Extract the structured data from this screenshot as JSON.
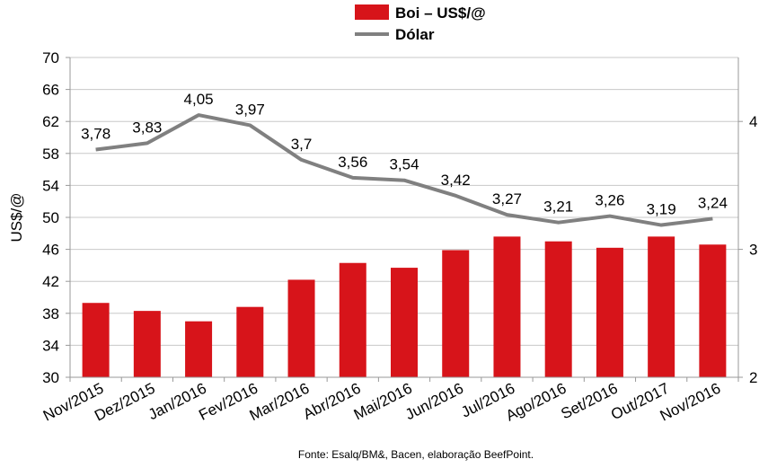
{
  "chart_data": {
    "type": "bar+line",
    "categories": [
      "Nov/2015",
      "Dez/2015",
      "Jan/2016",
      "Fev/2016",
      "Mar/2016",
      "Abr/2016",
      "Mai/2016",
      "Jun/2016",
      "Jul/2016",
      "Ago/2016",
      "Set/2016",
      "Out/2017",
      "Nov/2016"
    ],
    "series": [
      {
        "name": "Boi – US$/@",
        "type": "bar",
        "axis": "left",
        "color": "#d7141a",
        "values": [
          39.3,
          38.3,
          37.0,
          38.8,
          42.2,
          44.3,
          43.7,
          45.9,
          47.6,
          47.0,
          46.2,
          47.6,
          46.6
        ]
      },
      {
        "name": "Dólar",
        "type": "line",
        "axis": "right",
        "color": "#808080",
        "values": [
          3.78,
          3.83,
          4.05,
          3.97,
          3.7,
          3.56,
          3.54,
          3.42,
          3.27,
          3.21,
          3.26,
          3.19,
          3.24
        ],
        "labels": [
          "3,78",
          "3,83",
          "4,05",
          "3,97",
          "3,7",
          "3,56",
          "3,54",
          "3,42",
          "3,27",
          "3,21",
          "3,26",
          "3,19",
          "3,24"
        ]
      }
    ],
    "ylabel": "US$/@",
    "ylim": [
      30,
      70
    ],
    "yticks": [
      30,
      34,
      38,
      42,
      46,
      50,
      54,
      58,
      62,
      66,
      70
    ],
    "y2lim": [
      2,
      4.5
    ],
    "y2ticks": [
      2,
      3,
      4
    ],
    "grid": "horizontal",
    "legend_position": "top-center",
    "source": "Fonte: Esalq/BM&, Bacen, elaboração BeefPoint."
  }
}
